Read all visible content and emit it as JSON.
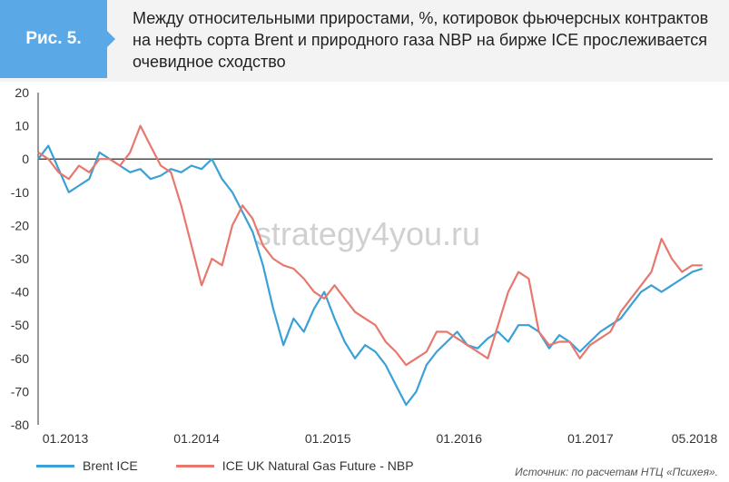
{
  "figure": {
    "badge": "Рис. 5.",
    "title": "Между относительными приростами, %, котировок фьючерсных контрактов на нефть сорта Brent и природного газа NBP на бирже ICE прослеживается очевидное сходство",
    "source": "Источник: по расчетам НТЦ «Психея».",
    "watermark": "strategy4you.ru"
  },
  "chart_data": {
    "type": "line",
    "ylim": [
      -80,
      20
    ],
    "yticks": [
      20,
      10,
      0,
      -10,
      -20,
      -30,
      -40,
      -50,
      -60,
      -70,
      -80
    ],
    "xlim": [
      "2013-01",
      "2018-07"
    ],
    "xtick_labels": [
      "01.2013",
      "01.2014",
      "01.2015",
      "01.2016",
      "01.2017",
      "05.2018"
    ],
    "grid": false,
    "legend_position": "bottom-left",
    "series": [
      {
        "name": "Brent ICE",
        "color": "#3aa0d6",
        "x": [
          "2013-01",
          "2013-02",
          "2013-03",
          "2013-04",
          "2013-05",
          "2013-06",
          "2013-07",
          "2013-08",
          "2013-09",
          "2013-10",
          "2013-11",
          "2013-12",
          "2014-01",
          "2014-02",
          "2014-03",
          "2014-04",
          "2014-05",
          "2014-06",
          "2014-07",
          "2014-08",
          "2014-09",
          "2014-10",
          "2014-11",
          "2014-12",
          "2015-01",
          "2015-02",
          "2015-03",
          "2015-04",
          "2015-05",
          "2015-06",
          "2015-07",
          "2015-08",
          "2015-09",
          "2015-10",
          "2015-11",
          "2015-12",
          "2016-01",
          "2016-02",
          "2016-03",
          "2016-04",
          "2016-05",
          "2016-06",
          "2016-07",
          "2016-08",
          "2016-09",
          "2016-10",
          "2016-11",
          "2016-12",
          "2017-01",
          "2017-02",
          "2017-03",
          "2017-04",
          "2017-05",
          "2017-06",
          "2017-07",
          "2017-08",
          "2017-09",
          "2017-10",
          "2017-11",
          "2017-12",
          "2018-01",
          "2018-02",
          "2018-03",
          "2018-04",
          "2018-05",
          "2018-06"
        ],
        "y": [
          0,
          4,
          -3,
          -10,
          -8,
          -6,
          2,
          0,
          -2,
          -4,
          -3,
          -6,
          -5,
          -3,
          -4,
          -2,
          -3,
          0,
          -6,
          -10,
          -16,
          -22,
          -32,
          -45,
          -56,
          -48,
          -52,
          -45,
          -40,
          -48,
          -55,
          -60,
          -56,
          -58,
          -62,
          -68,
          -74,
          -70,
          -62,
          -58,
          -55,
          -52,
          -56,
          -57,
          -54,
          -52,
          -55,
          -50,
          -50,
          -52,
          -57,
          -53,
          -55,
          -58,
          -55,
          -52,
          -50,
          -48,
          -44,
          -40,
          -38,
          -40,
          -38,
          -36,
          -34,
          -33
        ]
      },
      {
        "name": "ICE UK Natural Gas Future - NBP",
        "color": "#e8776e",
        "x": [
          "2013-01",
          "2013-02",
          "2013-03",
          "2013-04",
          "2013-05",
          "2013-06",
          "2013-07",
          "2013-08",
          "2013-09",
          "2013-10",
          "2013-11",
          "2013-12",
          "2014-01",
          "2014-02",
          "2014-03",
          "2014-04",
          "2014-05",
          "2014-06",
          "2014-07",
          "2014-08",
          "2014-09",
          "2014-10",
          "2014-11",
          "2014-12",
          "2015-01",
          "2015-02",
          "2015-03",
          "2015-04",
          "2015-05",
          "2015-06",
          "2015-07",
          "2015-08",
          "2015-09",
          "2015-10",
          "2015-11",
          "2015-12",
          "2016-01",
          "2016-02",
          "2016-03",
          "2016-04",
          "2016-05",
          "2016-06",
          "2016-07",
          "2016-08",
          "2016-09",
          "2016-10",
          "2016-11",
          "2016-12",
          "2017-01",
          "2017-02",
          "2017-03",
          "2017-04",
          "2017-05",
          "2017-06",
          "2017-07",
          "2017-08",
          "2017-09",
          "2017-10",
          "2017-11",
          "2017-12",
          "2018-01",
          "2018-02",
          "2018-03",
          "2018-04",
          "2018-05",
          "2018-06"
        ],
        "y": [
          2,
          0,
          -4,
          -6,
          -2,
          -4,
          0,
          0,
          -2,
          2,
          10,
          4,
          -2,
          -4,
          -14,
          -26,
          -38,
          -30,
          -32,
          -20,
          -14,
          -18,
          -26,
          -30,
          -32,
          -33,
          -36,
          -40,
          -42,
          -38,
          -42,
          -46,
          -48,
          -50,
          -55,
          -58,
          -62,
          -60,
          -58,
          -52,
          -52,
          -54,
          -56,
          -58,
          -60,
          -50,
          -40,
          -34,
          -36,
          -52,
          -56,
          -55,
          -55,
          -60,
          -56,
          -54,
          -52,
          -46,
          -42,
          -38,
          -34,
          -24,
          -30,
          -34,
          -32,
          -32
        ]
      }
    ]
  }
}
